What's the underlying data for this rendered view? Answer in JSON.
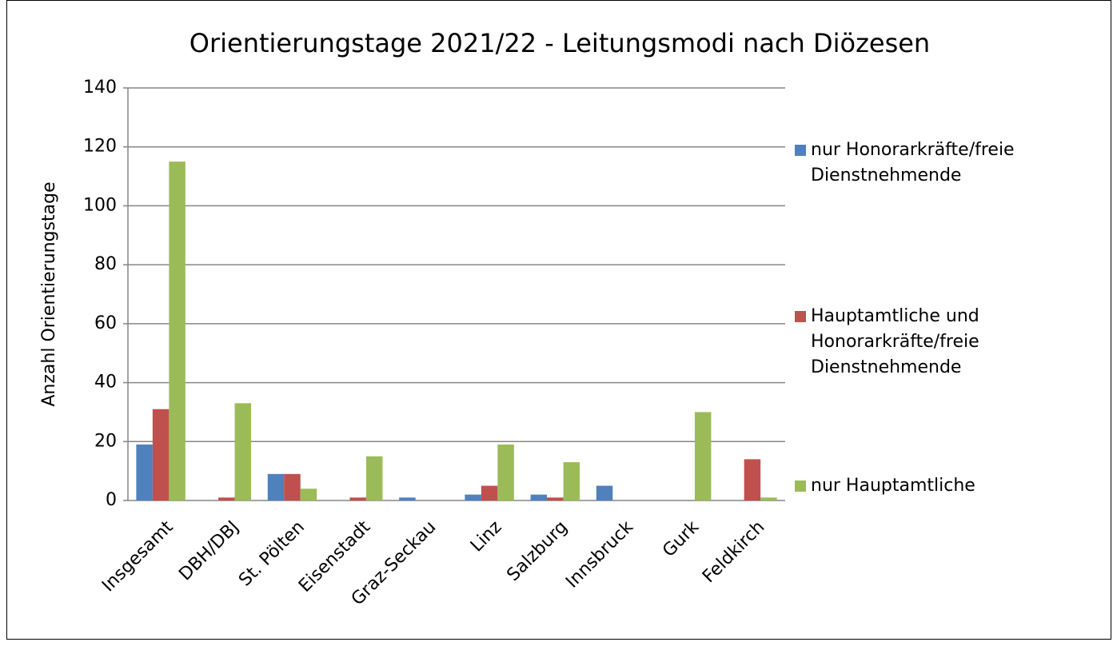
{
  "chart_data": {
    "type": "bar",
    "title": "Orientierungstage 2021/22 - Leitungsmodi nach Diözesen",
    "y_label": "Anzahl Orientierungstage",
    "categories": [
      "Insgesamt",
      "DBH/DBJ",
      "St. Pölten",
      "Eisenstadt",
      "Graz-Seckau",
      "Linz",
      "Salzburg",
      "Innsbruck",
      "Gurk",
      "Feldkirch"
    ],
    "series": [
      {
        "name": "nur Honorarkräfte/freie Dienstnehmende",
        "color": "#4f81bd",
        "values": [
          19,
          0,
          9,
          0,
          1,
          2,
          2,
          5,
          0,
          0
        ]
      },
      {
        "name": "Hauptamtliche und Honorarkräfte/freie Dienstnehmende",
        "color": "#c0504d",
        "values": [
          31,
          1,
          9,
          1,
          0,
          5,
          1,
          0,
          0,
          14
        ]
      },
      {
        "name": "nur Hauptamtliche",
        "color": "#9bbb59",
        "values": [
          115,
          33,
          4,
          15,
          0,
          19,
          13,
          0,
          30,
          1
        ]
      }
    ],
    "ylim": [
      0,
      140
    ],
    "yticks": [
      0,
      20,
      40,
      60,
      80,
      100,
      120,
      140
    ],
    "grid": true,
    "legend": "right"
  }
}
